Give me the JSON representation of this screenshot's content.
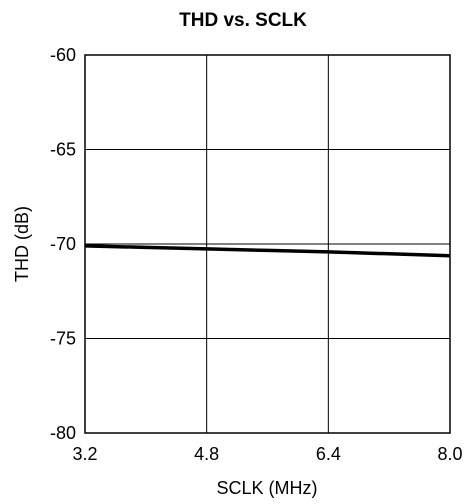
{
  "chart_data": {
    "type": "line",
    "title": "THD vs. SCLK",
    "xlabel": "SCLK (MHz)",
    "ylabel": "THD (dB)",
    "xlim": [
      3.2,
      8.0
    ],
    "ylim": [
      -80,
      -60
    ],
    "xticks": [
      3.2,
      4.8,
      6.4,
      8.0
    ],
    "xtick_labels": [
      "3.2",
      "4.8",
      "6.4",
      "8.0"
    ],
    "yticks": [
      -60,
      -65,
      -70,
      -75,
      -80
    ],
    "ytick_labels": [
      "-60",
      "-65",
      "-70",
      "-75",
      "-80"
    ],
    "grid": true,
    "legend": "none",
    "series": [
      {
        "x": [
          3.2,
          4.0,
          4.8,
          5.6,
          6.4,
          7.2,
          8.0
        ],
        "y": [
          -70.1,
          -70.18,
          -70.26,
          -70.34,
          -70.42,
          -70.52,
          -70.62
        ],
        "color": "#000000"
      }
    ]
  }
}
